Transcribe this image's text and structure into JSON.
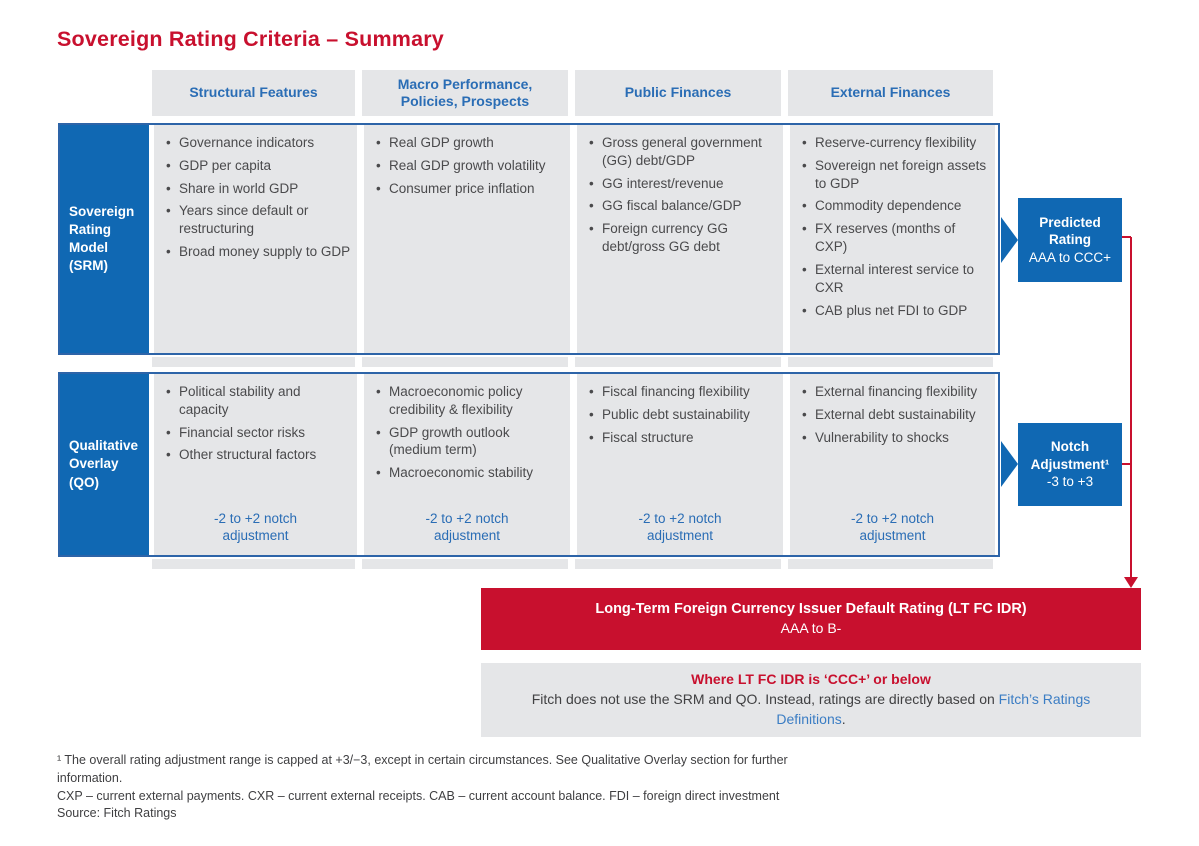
{
  "title": "Sovereign Rating Criteria – Summary",
  "colors": {
    "accent_blue": "#1068b3",
    "border_blue": "#2d64a8",
    "header_text_blue": "#2a6db5",
    "link_blue": "#3b7dc4",
    "red": "#c8102e",
    "cell_gray": "#e5e6e8",
    "text_gray": "#4a4a4c"
  },
  "columns": [
    "Structural Features",
    "Macro Performance, Policies, Prospects",
    "Public Finances",
    "External Finances"
  ],
  "rows": [
    {
      "label": "Sovereign Rating Model (SRM)",
      "cells": [
        {
          "bullets": [
            "Governance indicators",
            "GDP per capita",
            "Share in world GDP",
            "Years since default or restructuring",
            "Broad money supply to GDP"
          ]
        },
        {
          "bullets": [
            "Real GDP growth",
            "Real GDP growth volatility",
            "Consumer price inflation"
          ]
        },
        {
          "bullets": [
            "Gross general government (GG) debt/GDP",
            "GG interest/revenue",
            "GG fiscal balance/GDP",
            "Foreign currency GG debt/gross GG debt"
          ]
        },
        {
          "bullets": [
            "Reserve-currency flexibility",
            "Sovereign net foreign assets to GDP",
            "Commodity dependence",
            "FX reserves (months of CXP)",
            "External interest service to CXR",
            "CAB plus net FDI to GDP"
          ]
        }
      ]
    },
    {
      "label": "Qualitative Overlay (QO)",
      "cells": [
        {
          "bullets": [
            "Political stability and capacity",
            "Financial sector risks",
            "Other structural factors"
          ],
          "note": "-2 to +2 notch adjustment"
        },
        {
          "bullets": [
            "Macroeconomic policy credibility & flexibility",
            "GDP growth outlook (medium term)",
            "Macroeconomic stability"
          ],
          "note": "-2 to +2 notch adjustment"
        },
        {
          "bullets": [
            "Fiscal financing flexibility",
            "Public debt sustainability",
            "Fiscal structure"
          ],
          "note": "-2 to +2 notch adjustment"
        },
        {
          "bullets": [
            "External financing flexibility",
            "External debt sustainability",
            "Vulnerability to shocks"
          ],
          "note": "-2 to +2 notch adjustment"
        }
      ]
    }
  ],
  "outputs": {
    "predicted": {
      "title": "Predicted Rating",
      "range": "AAA to CCC+"
    },
    "notch": {
      "title": "Notch Adjustment¹",
      "range": "-3 to +3"
    }
  },
  "banner": {
    "title": "Long-Term Foreign Currency Issuer Default Rating (LT FC IDR)",
    "range": "AAA to B-"
  },
  "info_box": {
    "heading": "Where LT FC IDR is ‘CCC+’ or below",
    "body_before_link": "Fitch does not use the SRM and QO. Instead, ratings are directly based on ",
    "link": "Fitch’s Ratings Definitions",
    "body_after_link": "."
  },
  "footnotes": [
    "¹ The overall rating adjustment range is capped at +3/−3, except in certain circumstances. See Qualitative Overlay section for further information.",
    "CXP – current external payments. CXR – current external receipts. CAB – current account balance. FDI – foreign direct investment",
    "Source: Fitch Ratings"
  ]
}
